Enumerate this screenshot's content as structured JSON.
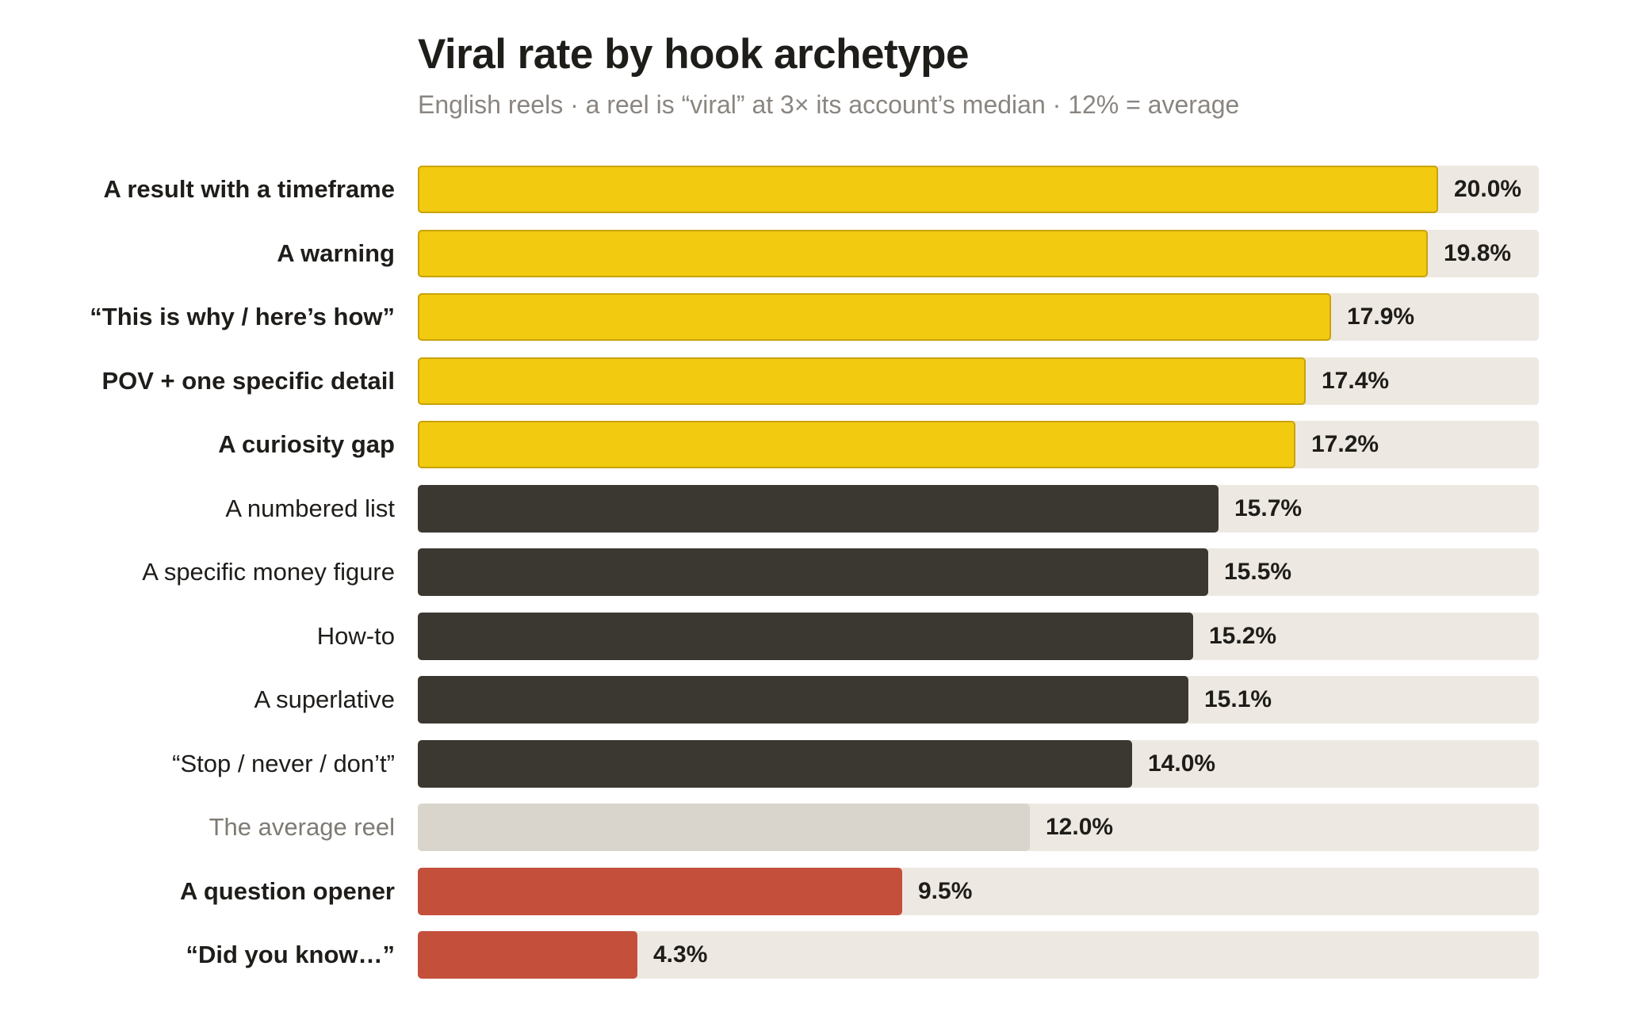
{
  "chart_data": {
    "type": "bar",
    "orientation": "horizontal",
    "title": "Viral rate by hook archetype",
    "subtitle": "English reels · a reel is “viral” at 3× its account’s median · 12% = average",
    "xlim": [
      0,
      22
    ],
    "unit": "%",
    "categories": [
      "A result with a timeframe",
      "A warning",
      "“This is why / here’s how”",
      "POV + one specific detail",
      "A curiosity gap",
      "A numbered list",
      "A specific money figure",
      "How-to",
      "A superlative",
      "“Stop / never / don’t”",
      "The average reel",
      "A question opener",
      "“Did you know…”"
    ],
    "values": [
      20.0,
      19.8,
      17.9,
      17.4,
      17.2,
      15.7,
      15.5,
      15.2,
      15.1,
      14.0,
      12.0,
      9.5,
      4.3
    ],
    "value_labels": [
      "20.0%",
      "19.8%",
      "17.9%",
      "17.4%",
      "17.2%",
      "15.7%",
      "15.5%",
      "15.2%",
      "15.1%",
      "14.0%",
      "12.0%",
      "9.5%",
      "4.3%"
    ],
    "groups": [
      "top",
      "top",
      "top",
      "top",
      "top",
      "above",
      "above",
      "above",
      "above",
      "above",
      "average",
      "below",
      "below"
    ],
    "colors": {
      "top": "#f2cb10",
      "above": "#3b3832",
      "average": "#d9d5cc",
      "below": "#c4503b",
      "track": "#ede9e2"
    },
    "grid": false,
    "legend": "none"
  }
}
